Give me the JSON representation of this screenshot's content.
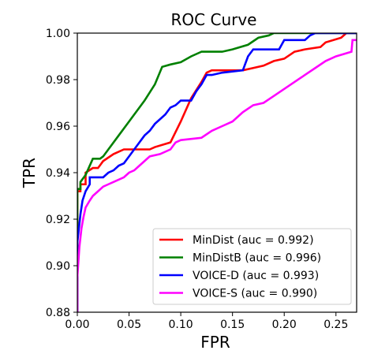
{
  "chart_data": {
    "type": "line",
    "title": "ROC Curve",
    "xlabel": "FPR",
    "ylabel": "TPR",
    "xlim": [
      0.0,
      0.27
    ],
    "ylim": [
      0.88,
      1.0
    ],
    "xticks": [
      "0.00",
      "0.05",
      "0.10",
      "0.15",
      "0.20",
      "0.25"
    ],
    "yticks": [
      "0.88",
      "0.90",
      "0.92",
      "0.94",
      "0.96",
      "0.98",
      "1.00"
    ],
    "grid": false,
    "legend_position": "lower-right",
    "series": [
      {
        "name": "MinDist (auc = 0.992)",
        "color": "#ff0000",
        "x": [
          0.0,
          0.0,
          0.003,
          0.003,
          0.008,
          0.008,
          0.015,
          0.02,
          0.025,
          0.035,
          0.045,
          0.05,
          0.07,
          0.075,
          0.09,
          0.1,
          0.11,
          0.12,
          0.125,
          0.13,
          0.16,
          0.17,
          0.18,
          0.19,
          0.2,
          0.21,
          0.22,
          0.235,
          0.24,
          0.255,
          0.26,
          0.27
        ],
        "y": [
          0.88,
          0.932,
          0.932,
          0.935,
          0.935,
          0.94,
          0.942,
          0.942,
          0.945,
          0.948,
          0.95,
          0.95,
          0.95,
          0.951,
          0.953,
          0.962,
          0.972,
          0.979,
          0.983,
          0.984,
          0.984,
          0.985,
          0.986,
          0.988,
          0.989,
          0.992,
          0.993,
          0.994,
          0.996,
          0.998,
          1.0,
          1.0
        ]
      },
      {
        "name": "MinDistB (auc = 0.996)",
        "color": "#008000",
        "x": [
          0.0,
          0.0,
          0.003,
          0.003,
          0.008,
          0.015,
          0.022,
          0.025,
          0.03,
          0.04,
          0.05,
          0.065,
          0.075,
          0.082,
          0.09,
          0.1,
          0.11,
          0.12,
          0.14,
          0.15,
          0.165,
          0.175,
          0.185,
          0.19,
          0.2,
          0.27
        ],
        "y": [
          0.88,
          0.933,
          0.933,
          0.936,
          0.939,
          0.946,
          0.946,
          0.947,
          0.95,
          0.956,
          0.962,
          0.971,
          0.978,
          0.9855,
          0.9865,
          0.9875,
          0.99,
          0.992,
          0.992,
          0.993,
          0.995,
          0.998,
          0.999,
          1.0,
          1.0,
          1.0
        ]
      },
      {
        "name": "VOICE-D (auc = 0.993)",
        "color": "#0000ff",
        "x": [
          0.0,
          0.0,
          0.002,
          0.003,
          0.005,
          0.008,
          0.012,
          0.012,
          0.025,
          0.03,
          0.035,
          0.04,
          0.045,
          0.05,
          0.055,
          0.06,
          0.065,
          0.07,
          0.075,
          0.08,
          0.085,
          0.09,
          0.095,
          0.1,
          0.11,
          0.115,
          0.12,
          0.125,
          0.13,
          0.14,
          0.16,
          0.165,
          0.17,
          0.195,
          0.2,
          0.22,
          0.225,
          0.23,
          0.27
        ],
        "y": [
          0.88,
          0.91,
          0.918,
          0.922,
          0.928,
          0.932,
          0.935,
          0.938,
          0.938,
          0.94,
          0.941,
          0.943,
          0.944,
          0.947,
          0.95,
          0.953,
          0.956,
          0.958,
          0.961,
          0.963,
          0.965,
          0.968,
          0.969,
          0.971,
          0.971,
          0.975,
          0.978,
          0.982,
          0.982,
          0.983,
          0.984,
          0.99,
          0.993,
          0.993,
          0.997,
          0.997,
          0.999,
          1.0,
          1.0
        ]
      },
      {
        "name": "VOICE-S (auc = 0.990)",
        "color": "#ff00ff",
        "x": [
          0.0,
          0.0,
          0.002,
          0.004,
          0.006,
          0.008,
          0.012,
          0.015,
          0.02,
          0.025,
          0.03,
          0.035,
          0.045,
          0.05,
          0.055,
          0.06,
          0.065,
          0.07,
          0.08,
          0.09,
          0.095,
          0.1,
          0.12,
          0.13,
          0.14,
          0.15,
          0.16,
          0.17,
          0.18,
          0.19,
          0.2,
          0.21,
          0.22,
          0.23,
          0.24,
          0.25,
          0.265,
          0.266,
          0.27
        ],
        "y": [
          0.88,
          0.895,
          0.908,
          0.916,
          0.921,
          0.925,
          0.928,
          0.93,
          0.932,
          0.934,
          0.935,
          0.936,
          0.938,
          0.94,
          0.941,
          0.943,
          0.945,
          0.947,
          0.948,
          0.95,
          0.953,
          0.954,
          0.955,
          0.958,
          0.96,
          0.962,
          0.966,
          0.969,
          0.97,
          0.973,
          0.976,
          0.979,
          0.982,
          0.985,
          0.988,
          0.99,
          0.992,
          0.997,
          0.997
        ]
      }
    ]
  }
}
